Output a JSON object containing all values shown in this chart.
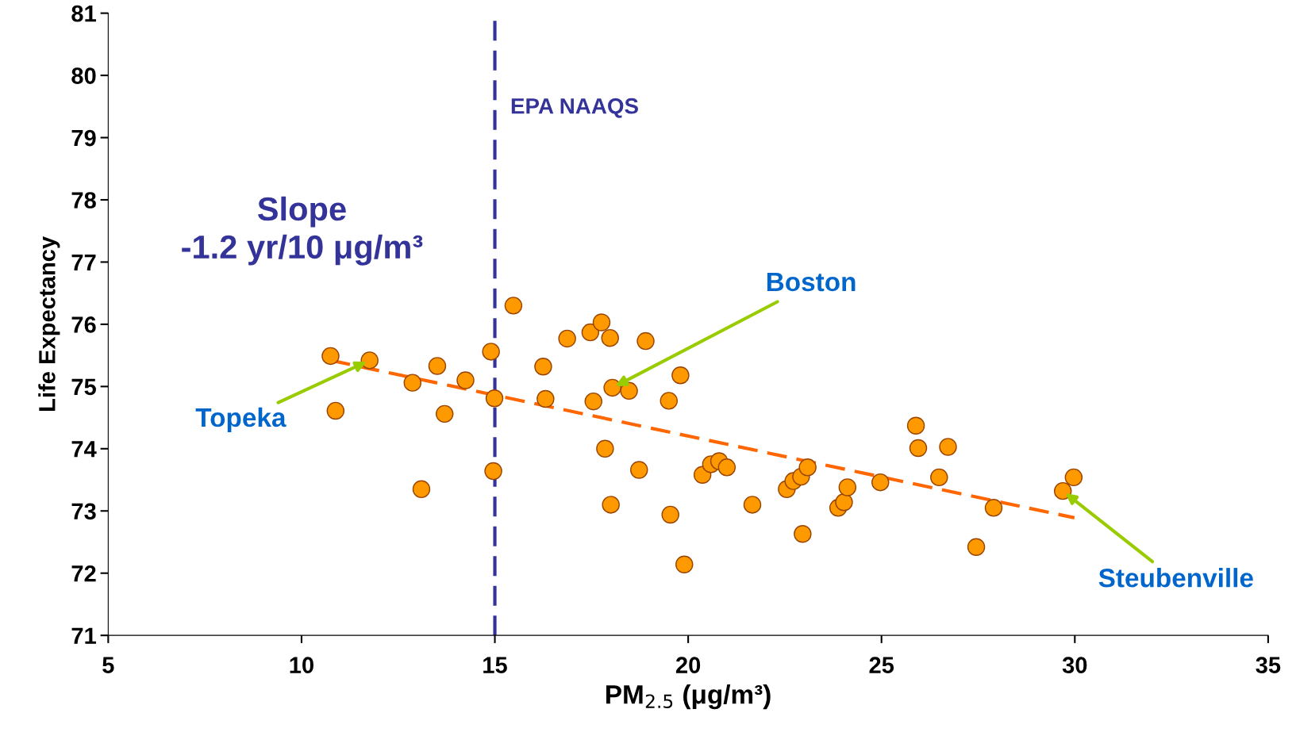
{
  "chart_data": {
    "type": "scatter",
    "xlabel": "PM$_{2.5}$ (μg/m³)",
    "ylabel": "Life Expectancy",
    "xlim": [
      5,
      35
    ],
    "xticks": [
      5,
      10,
      15,
      20,
      25,
      30,
      35
    ],
    "ylim": [
      71,
      81
    ],
    "yticks": [
      71,
      72,
      73,
      74,
      75,
      76,
      77,
      78,
      79,
      80,
      81
    ],
    "grid": false,
    "series": [
      {
        "marker": "circle",
        "color": "#ff9900",
        "x": [
          10.75,
          10.88,
          11.76,
          12.87,
          13.1,
          13.51,
          13.7,
          14.24,
          14.9,
          14.99,
          14.96,
          15.48,
          16.25,
          16.31,
          16.87,
          17.47,
          17.76,
          17.98,
          17.55,
          17.85,
          18.04,
          18.47,
          18.0,
          18.73,
          18.9,
          19.5,
          19.8,
          19.54,
          19.9,
          20.37,
          20.59,
          20.8,
          21.0,
          21.66,
          22.55,
          22.72,
          22.92,
          23.09,
          22.96,
          23.88,
          24.03,
          24.12,
          24.97,
          25.89,
          25.95,
          26.49,
          26.72,
          27.45,
          27.9,
          29.69,
          29.97
        ],
        "values": [
          75.49,
          74.61,
          75.42,
          75.06,
          73.35,
          75.33,
          74.56,
          75.1,
          75.56,
          74.81,
          73.64,
          76.3,
          75.32,
          74.8,
          75.77,
          75.87,
          76.03,
          75.78,
          74.76,
          74.0,
          74.98,
          74.93,
          73.1,
          73.66,
          75.73,
          74.77,
          75.18,
          72.94,
          72.14,
          73.58,
          73.75,
          73.8,
          73.7,
          73.1,
          73.35,
          73.48,
          73.55,
          73.7,
          72.63,
          73.05,
          73.14,
          73.38,
          73.46,
          74.37,
          74.01,
          73.54,
          74.03,
          72.42,
          73.05,
          73.32,
          73.54
        ]
      },
      {
        "type": "line",
        "color": "#ff6600",
        "line_style": "dashed",
        "x": [
          10.75,
          29.99
        ],
        "values": [
          75.42,
          72.89
        ]
      }
    ],
    "ref_lines": [
      {
        "axis": "x",
        "value": 15,
        "label": "EPA NAAQS",
        "color": "#333399",
        "line_style": "dashed"
      }
    ],
    "annotations": [
      "Slope\n-1.2 yr/10 μg/m³",
      {
        "text": "Topeka",
        "x": 11.76,
        "y": 75.42
      },
      {
        "text": "Boston",
        "x": 18.04,
        "y": 74.98
      },
      {
        "text": "Steubenville",
        "x": 29.69,
        "y": 73.32
      }
    ]
  }
}
